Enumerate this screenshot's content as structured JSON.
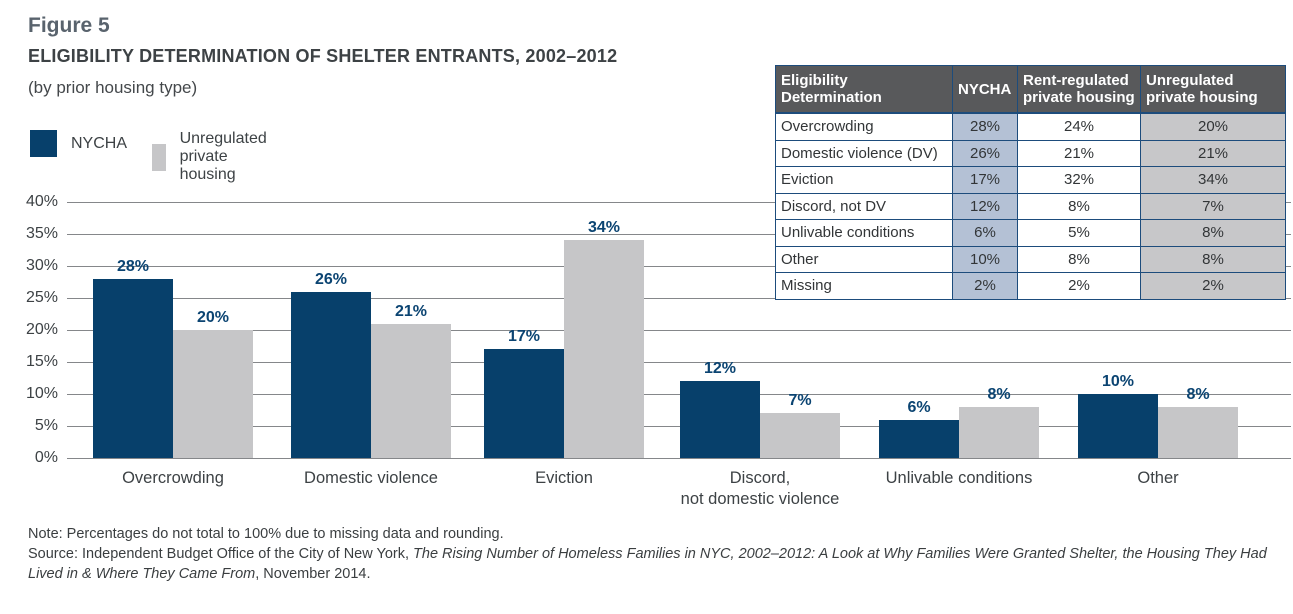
{
  "figure": {
    "label": "Figure 5",
    "title": "ELIGIBILITY DETERMINATION OF SHELTER ENTRANTS, 2002–2012",
    "subtitle": "(by prior housing type)"
  },
  "legend": [
    {
      "label": "NYCHA",
      "color": "#07406b"
    },
    {
      "label": "Unregulated private housing",
      "color": "#c6c6c8"
    }
  ],
  "chart_data": {
    "type": "bar",
    "categories": [
      "Overcrowding",
      "Domestic violence",
      "Eviction",
      "Discord,\nnot domestic violence",
      "Unlivable conditions",
      "Other"
    ],
    "series": [
      {
        "name": "NYCHA",
        "color": "#07406b",
        "values": [
          28,
          26,
          17,
          12,
          6,
          10
        ]
      },
      {
        "name": "Unregulated private housing",
        "color": "#c6c6c8",
        "values": [
          20,
          21,
          34,
          7,
          8,
          8
        ]
      }
    ],
    "value_labels": [
      [
        "28%",
        "26%",
        "17%",
        "12%",
        "6%",
        "10%"
      ],
      [
        "20%",
        "21%",
        "34%",
        "7%",
        "8%",
        "8%"
      ]
    ],
    "title": "ELIGIBILITY DETERMINATION OF SHELTER ENTRANTS, 2002–2012",
    "xlabel": "",
    "ylabel": "",
    "ylim": [
      0,
      40
    ],
    "yticks": [
      "40%",
      "35%",
      "30%",
      "25%",
      "20%",
      "15%",
      "10%",
      "5%",
      "0%"
    ],
    "grid": true,
    "legend_position": "top-left"
  },
  "table": {
    "headers": [
      "Eligibility Determination",
      "NYCHA",
      "Rent-regulated private housing",
      "Unregulated private housing"
    ],
    "rows": [
      {
        "label": "Overcrowding",
        "nycha": "28%",
        "rent_regulated": "24%",
        "unregulated": "20%"
      },
      {
        "label": "Domestic violence (DV)",
        "nycha": "26%",
        "rent_regulated": "21%",
        "unregulated": "21%"
      },
      {
        "label": "Eviction",
        "nycha": "17%",
        "rent_regulated": "32%",
        "unregulated": "34%"
      },
      {
        "label": "Discord, not DV",
        "nycha": "12%",
        "rent_regulated": "8%",
        "unregulated": "7%"
      },
      {
        "label": "Unlivable conditions",
        "nycha": "6%",
        "rent_regulated": "5%",
        "unregulated": "8%"
      },
      {
        "label": "Other",
        "nycha": "10%",
        "rent_regulated": "8%",
        "unregulated": "8%"
      },
      {
        "label": "Missing",
        "nycha": "2%",
        "rent_regulated": "2%",
        "unregulated": "2%"
      }
    ]
  },
  "notes": {
    "note": "Note: Percentages do not total to 100% due to missing data and rounding.",
    "source_prefix": "Source: Independent Budget Office of the City of New York, ",
    "source_title": "The Rising Number of Homeless Families in NYC, 2002–2012: A Look at Why Families Were Granted Shelter, the Housing They Had Lived in & Where They Came From",
    "source_suffix": ", November 2014."
  },
  "colors": {
    "nycha_bar": "#07406b",
    "unregulated_bar": "#c6c6c8",
    "table_header_bg": "#58595b",
    "table_nycha_cell_bg": "#b4c1d5",
    "table_unregulated_cell_bg": "#c7c7c9",
    "table_border": "#1d4c7c",
    "gridline": "#85878a",
    "value_label": "#0b4472"
  }
}
